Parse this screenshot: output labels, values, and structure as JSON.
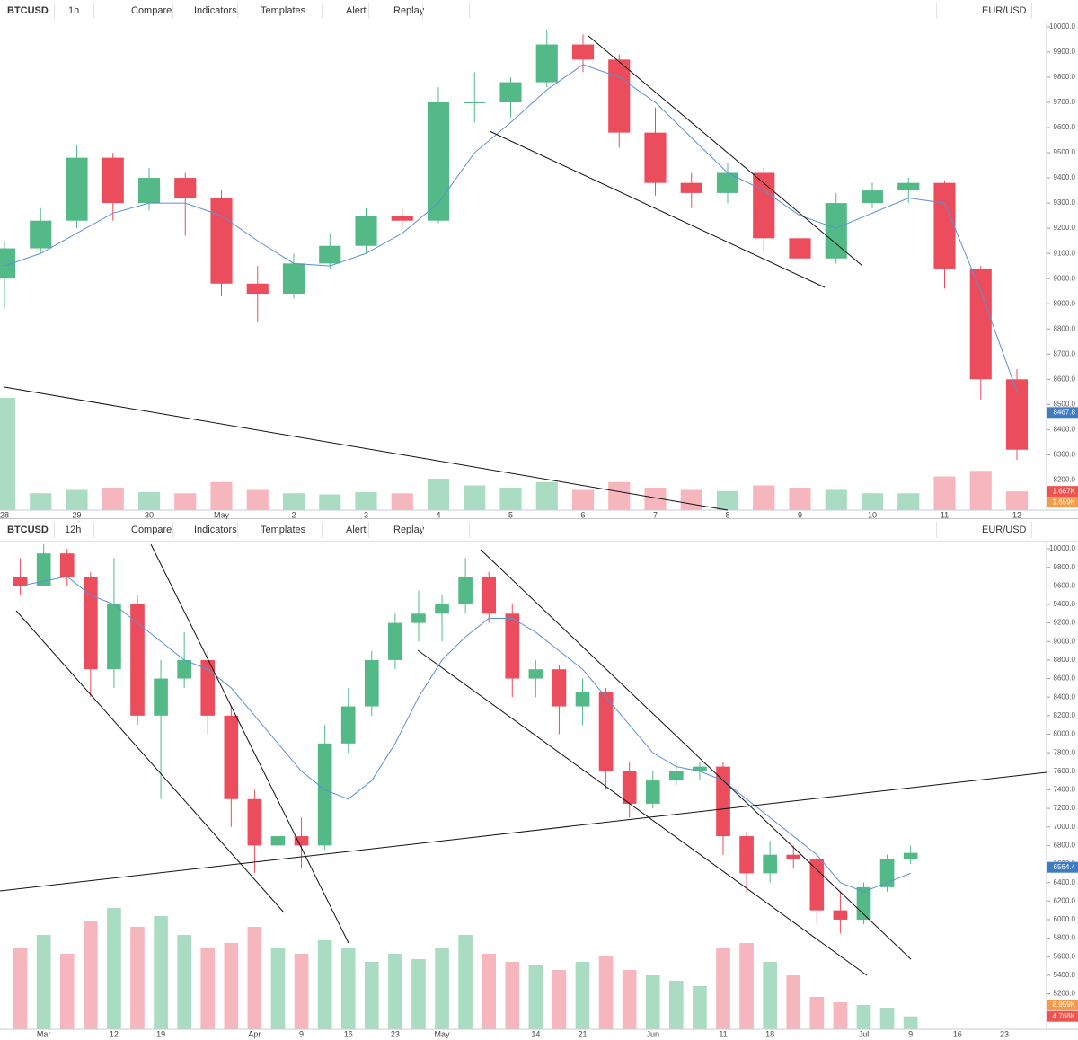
{
  "toolbars": [
    {
      "symbol": "BTCUSD",
      "interval": "1h",
      "compare": "Compare",
      "indicators": "Indicators",
      "templates": "Templates",
      "alert": "Alert",
      "replay": "Replay",
      "currency": "EUR/USD"
    },
    {
      "symbol": "BTCUSD",
      "interval": "12h",
      "compare": "Compare",
      "indicators": "Indicators",
      "templates": "Templates",
      "alert": "Alert",
      "replay": "Replay",
      "currency": "EUR/USD"
    }
  ],
  "chart_data": [
    {
      "type": "candlestick",
      "categories": [
        "28",
        null,
        "29",
        null,
        "30",
        null,
        "May",
        null,
        "2",
        null,
        "3",
        null,
        "4",
        null,
        "5",
        null,
        "6",
        null,
        "7",
        null,
        "8",
        null,
        "9",
        null,
        "10",
        null,
        "11",
        null,
        "12"
      ],
      "open": [
        9000,
        9120,
        9230,
        9480,
        9300,
        9400,
        9320,
        8980,
        8940,
        9060,
        9130,
        9250,
        9230,
        9700,
        9700,
        9780,
        9930,
        9870,
        9580,
        9380,
        9340,
        9420,
        9160,
        9080,
        9300,
        9350,
        9380,
        9040,
        8600
      ],
      "high": [
        9150,
        9280,
        9530,
        9500,
        9440,
        9420,
        9350,
        9050,
        9100,
        9180,
        9280,
        9280,
        9760,
        9820,
        9800,
        9990,
        9970,
        9890,
        9680,
        9420,
        9460,
        9440,
        9250,
        9340,
        9380,
        9400,
        9390,
        9050,
        8640
      ],
      "low": [
        8880,
        9100,
        9200,
        9230,
        9270,
        9170,
        8930,
        8830,
        8920,
        9040,
        9100,
        9200,
        9220,
        9620,
        9640,
        9760,
        9820,
        9520,
        9330,
        9280,
        9300,
        9110,
        9040,
        9060,
        9280,
        9300,
        8960,
        8520,
        8280
      ],
      "close": [
        9120,
        9230,
        9480,
        9300,
        9400,
        9320,
        8980,
        8940,
        9060,
        9130,
        9250,
        9230,
        9700,
        9700,
        9780,
        9930,
        9870,
        9580,
        9380,
        9340,
        9420,
        9160,
        9080,
        9300,
        9350,
        9380,
        9040,
        8600,
        8320
      ],
      "ma": [
        9050,
        9100,
        9180,
        9260,
        9300,
        9300,
        9250,
        9150,
        9060,
        9050,
        9100,
        9180,
        9300,
        9500,
        9620,
        9750,
        9850,
        9800,
        9700,
        9560,
        9420,
        9350,
        9250,
        9200,
        9260,
        9320,
        9300,
        8950,
        8550
      ],
      "volume": [
        10000,
        1500,
        1800,
        2000,
        1600,
        1500,
        2500,
        1800,
        1500,
        1400,
        1600,
        1500,
        2800,
        2200,
        2000,
        2500,
        1800,
        2500,
        2000,
        1800,
        1700,
        2200,
        2000,
        1800,
        1500,
        1500,
        3000,
        3500,
        1667
      ],
      "ylim": [
        8080,
        10014
      ],
      "yticks": [
        {
          "value": 10000,
          "label": "10000.0"
        },
        {
          "value": 9900,
          "label": "9900.0"
        },
        {
          "value": 9800,
          "label": "9800.0"
        },
        {
          "value": 9700,
          "label": "9700.0"
        },
        {
          "value": 9600,
          "label": "9600.0"
        },
        {
          "value": 9500,
          "label": "9500.0"
        },
        {
          "value": 9400,
          "label": "9400.0"
        },
        {
          "value": 9300,
          "label": "9300.0"
        },
        {
          "value": 9200,
          "label": "9200.0"
        },
        {
          "value": 9100,
          "label": "9100.0"
        },
        {
          "value": 9000,
          "label": "9000.0"
        },
        {
          "value": 8900,
          "label": "8900.0"
        },
        {
          "value": 8800,
          "label": "8800.0"
        },
        {
          "value": 8700,
          "label": "8700.0"
        },
        {
          "value": 8600,
          "label": "8600.0"
        },
        {
          "value": 8500,
          "label": "8500.0"
        },
        {
          "value": 8400,
          "label": "8400.0"
        },
        {
          "value": 8300,
          "label": "8300.0"
        },
        {
          "value": 8200,
          "label": "8200.0"
        }
      ],
      "vlim": [
        0,
        12000
      ],
      "price_label": 8467.8,
      "volume_labels": [
        {
          "value": 1667,
          "label": "1.667K"
        },
        {
          "value": 1659,
          "label": "1.659K"
        }
      ],
      "colors": {
        "up": "#53b987",
        "down": "#eb4d5c",
        "ma": "#5b8fd6",
        "volume_up": "#a9dcc3",
        "volume_down": "#f5b7bd",
        "price_label": "#3f7cc4",
        "volume_labels": [
          "#ef5350",
          "#f59a4a"
        ]
      }
    },
    {
      "type": "candlestick",
      "categories": [
        null,
        "Mar",
        null,
        null,
        "12",
        null,
        "19",
        null,
        null,
        null,
        "Apr",
        null,
        "9",
        null,
        "16",
        null,
        "23",
        null,
        "May",
        null,
        null,
        null,
        "14",
        null,
        "21",
        null,
        null,
        "Jun",
        null,
        null,
        "11",
        null,
        "18",
        null,
        null,
        null,
        "Jul",
        null,
        "9",
        null,
        "16",
        null,
        "23"
      ],
      "open": [
        9700,
        9600,
        9950,
        9700,
        8700,
        9400,
        8200,
        8600,
        8800,
        8200,
        7300,
        6800,
        6900,
        6800,
        7900,
        8300,
        8800,
        9200,
        9300,
        9400,
        9700,
        9300,
        8600,
        8700,
        8300,
        8450,
        7600,
        7250,
        7500,
        7600,
        7650,
        6900,
        6500,
        6700,
        6650,
        6100,
        6000,
        6350,
        6650,
        null,
        null,
        null,
        null
      ],
      "high": [
        9900,
        10050,
        10000,
        9750,
        9900,
        9500,
        8800,
        9100,
        8900,
        8300,
        7400,
        7500,
        7100,
        8100,
        8500,
        8900,
        9300,
        9550,
        9500,
        9900,
        9750,
        9400,
        8800,
        8750,
        8600,
        8500,
        7700,
        7600,
        7700,
        7700,
        7700,
        6950,
        6850,
        6800,
        6700,
        6300,
        6400,
        6700,
        6800,
        null,
        null,
        null,
        null
      ],
      "low": [
        9500,
        9600,
        9600,
        8400,
        8500,
        8100,
        7300,
        8500,
        8000,
        7000,
        6500,
        6600,
        6550,
        6750,
        7800,
        8200,
        8700,
        9000,
        9000,
        9300,
        9200,
        8400,
        8400,
        8000,
        8100,
        7400,
        7100,
        7200,
        7450,
        7500,
        6700,
        6300,
        6400,
        6550,
        5950,
        5850,
        5950,
        6300,
        6600,
        null,
        null,
        null,
        null
      ],
      "close": [
        9600,
        9950,
        9700,
        8700,
        9400,
        8200,
        8600,
        8800,
        8200,
        7300,
        6800,
        6900,
        6800,
        7900,
        8300,
        8800,
        9200,
        9300,
        9400,
        9700,
        9300,
        8600,
        8700,
        8300,
        8450,
        7600,
        7250,
        7500,
        7600,
        7650,
        6900,
        6500,
        6700,
        6650,
        6100,
        6000,
        6350,
        6650,
        6720,
        null,
        null,
        null,
        null
      ],
      "ma": [
        9600,
        9650,
        9700,
        9500,
        9400,
        9200,
        9000,
        8800,
        8700,
        8500,
        8200,
        7900,
        7600,
        7400,
        7300,
        7500,
        7900,
        8400,
        8800,
        9050,
        9250,
        9250,
        9100,
        8900,
        8700,
        8400,
        8100,
        7800,
        7650,
        7600,
        7500,
        7300,
        7100,
        6900,
        6700,
        6400,
        6300,
        6400,
        6500,
        null,
        null,
        null,
        null
      ],
      "volume": [
        30000,
        35000,
        28000,
        40000,
        45000,
        38000,
        42000,
        35000,
        30000,
        32000,
        38000,
        30000,
        28000,
        33000,
        30000,
        25000,
        28000,
        26000,
        30000,
        35000,
        28000,
        25000,
        24000,
        22000,
        25000,
        27000,
        22000,
        20000,
        18000,
        16000,
        30000,
        32000,
        25000,
        20000,
        12000,
        10000,
        9000,
        8000,
        4768,
        null,
        null,
        null,
        null
      ],
      "ylim": [
        4818,
        10068
      ],
      "yticks": [
        {
          "value": 10000,
          "label": "10000.0"
        },
        {
          "value": 9800,
          "label": "9800.0"
        },
        {
          "value": 9600,
          "label": "9600.0"
        },
        {
          "value": 9400,
          "label": "9400.0"
        },
        {
          "value": 9200,
          "label": "9200.0"
        },
        {
          "value": 9000,
          "label": "9000.0"
        },
        {
          "value": 8800,
          "label": "8800.0"
        },
        {
          "value": 8600,
          "label": "8600.0"
        },
        {
          "value": 8400,
          "label": "8400.0"
        },
        {
          "value": 8200,
          "label": "8200.0"
        },
        {
          "value": 8000,
          "label": "8000.0"
        },
        {
          "value": 7800,
          "label": "7800.0"
        },
        {
          "value": 7600,
          "label": "7600.0"
        },
        {
          "value": 7400,
          "label": "7400.0"
        },
        {
          "value": 7200,
          "label": "7200.0"
        },
        {
          "value": 7000,
          "label": "7000.0"
        },
        {
          "value": 6800,
          "label": "6800.0"
        },
        {
          "value": 6600,
          "label": "6600.0"
        },
        {
          "value": 6400,
          "label": "6400.0"
        },
        {
          "value": 6200,
          "label": "6200.0"
        },
        {
          "value": 6000,
          "label": "6000.0"
        },
        {
          "value": 5800,
          "label": "5800.0"
        },
        {
          "value": 5600,
          "label": "5600.0"
        },
        {
          "value": 5400,
          "label": "5400.0"
        },
        {
          "value": 5200,
          "label": "5200.0"
        }
      ],
      "vlim": [
        0,
        50000
      ],
      "price_label": 6564.4,
      "volume_labels": [
        {
          "value": 8959,
          "label": "8.959K"
        },
        {
          "value": 4768,
          "label": "4.768K"
        }
      ],
      "colors": {
        "up": "#53b987",
        "down": "#eb4d5c",
        "ma": "#5b8fd6",
        "volume_up": "#a9dcc3",
        "volume_down": "#f5b7bd",
        "price_label": "#3f7cc4",
        "volume_labels": [
          "#f59a4a",
          "#ef5350"
        ]
      }
    }
  ]
}
